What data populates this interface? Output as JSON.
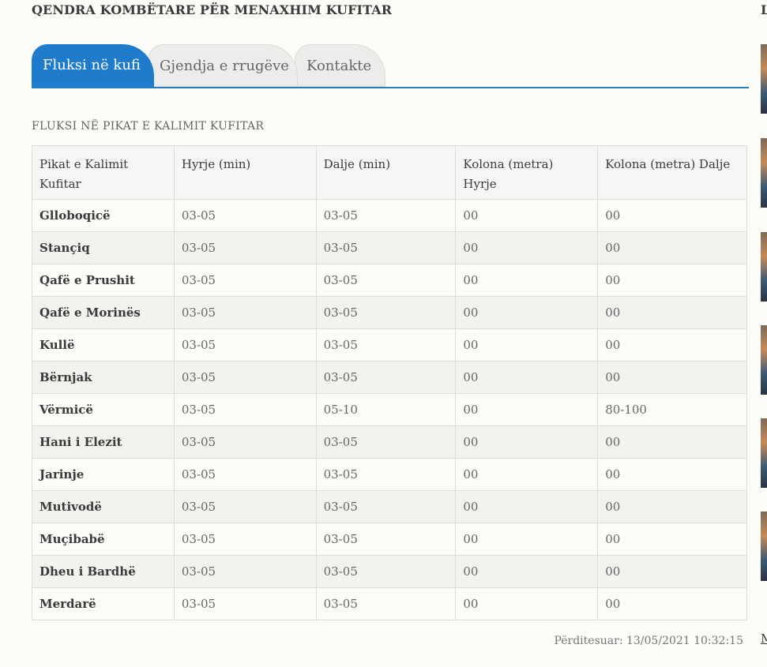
{
  "header": {
    "title": "QENDRA KOMBËTARE PËR MENAXHIM KUFITAR"
  },
  "tabs": [
    {
      "label": "Fluksi në kufi",
      "active": true
    },
    {
      "label": "Gjendja e rrugëve",
      "active": false
    },
    {
      "label": "Kontakte",
      "active": false
    }
  ],
  "section": {
    "label": "FLUKSI NË PIKAT E KALIMIT KUFITAR"
  },
  "table": {
    "headers": [
      "Pikat e Kalimit Kufitar",
      "Hyrje (min)",
      "Dalje (min)",
      "Kolona (metra) Hyrje",
      "Kolona (metra) Dalje"
    ],
    "rows": [
      [
        "Glloboqicë",
        "03-05",
        "03-05",
        "00",
        "00"
      ],
      [
        "Stançiq",
        "03-05",
        "03-05",
        "00",
        "00"
      ],
      [
        "Qafë e Prushit",
        "03-05",
        "03-05",
        "00",
        "00"
      ],
      [
        "Qafë e Morinës",
        "03-05",
        "03-05",
        "00",
        "00"
      ],
      [
        "Kullë",
        "03-05",
        "03-05",
        "00",
        "00"
      ],
      [
        "Bërnjak",
        "03-05",
        "03-05",
        "00",
        "00"
      ],
      [
        "Vërmicë",
        "03-05",
        "05-10",
        "00",
        "80-100"
      ],
      [
        "Hani i Elezit",
        "03-05",
        "03-05",
        "00",
        "00"
      ],
      [
        "Jarinje",
        "03-05",
        "03-05",
        "00",
        "00"
      ],
      [
        "Mutivodë",
        "03-05",
        "03-05",
        "00",
        "00"
      ],
      [
        "Muçibabë",
        "03-05",
        "03-05",
        "00",
        "00"
      ],
      [
        "Dheu i Bardhë",
        "03-05",
        "03-05",
        "00",
        "00"
      ],
      [
        "Merdarë",
        "03-05",
        "03-05",
        "00",
        "00"
      ]
    ]
  },
  "footer": {
    "updated": "Përditesuar: 13/05/2021 10:32:15"
  },
  "sidebar": {
    "heading_fragment": "L",
    "more_fragment": "M"
  },
  "colors": {
    "accent": "#1f7bcc",
    "tab_inactive": "#ececea"
  }
}
